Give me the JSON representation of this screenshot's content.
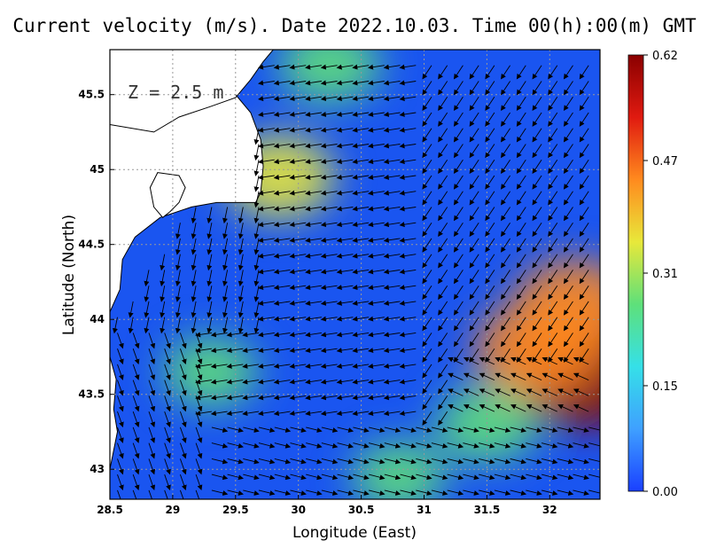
{
  "chart_data": {
    "type": "vector-field",
    "title": "Current velocity (m/s). Date 2022.10.03. Time 00(h):00(m) GMT",
    "xlabel": "Longitude (East)",
    "ylabel": "Latitude (North)",
    "xlim": [
      28.5,
      32.4
    ],
    "ylim": [
      42.8,
      45.8
    ],
    "xticks": [
      "28.5",
      "29",
      "29.5",
      "30",
      "30.5",
      "31",
      "31.5",
      "32"
    ],
    "xtick_values": [
      28.5,
      29,
      29.5,
      30,
      30.5,
      31,
      31.5,
      32
    ],
    "yticks": [
      "43",
      "43.5",
      "44",
      "44.5",
      "45",
      "45.5"
    ],
    "ytick_values": [
      43,
      43.5,
      44,
      44.5,
      45,
      45.5
    ],
    "grid": true,
    "depth_label": "Z = 2.5 m",
    "colorbar": {
      "min": 0.0,
      "max": 0.62,
      "ticks": [
        "0.62",
        "0.47",
        "0.31",
        "0.15",
        "0.00"
      ],
      "tick_values": [
        0.62,
        0.47,
        0.31,
        0.15,
        0.0
      ],
      "colors": [
        "#1a40ff",
        "#3fa0ff",
        "#35e0e8",
        "#5ee07a",
        "#e8e83a",
        "#ff8a1e",
        "#e01a10",
        "#8a0000"
      ]
    },
    "high_speed_regions": [
      {
        "lon": 32.3,
        "lat": 43.65,
        "speed": 0.6
      },
      {
        "lon": 31.9,
        "lat": 43.8,
        "speed": 0.45
      },
      {
        "lon": 32.2,
        "lat": 44.1,
        "speed": 0.42
      },
      {
        "lon": 29.85,
        "lat": 44.95,
        "speed": 0.35
      },
      {
        "lon": 30.25,
        "lat": 45.7,
        "speed": 0.3
      },
      {
        "lon": 31.5,
        "lat": 43.3,
        "speed": 0.3
      },
      {
        "lon": 30.8,
        "lat": 42.95,
        "speed": 0.25
      },
      {
        "lon": 29.3,
        "lat": 43.65,
        "speed": 0.25
      }
    ],
    "coastline": {
      "mainland": [
        [
          28.5,
          45.3
        ],
        [
          28.85,
          45.25
        ],
        [
          29.05,
          45.35
        ],
        [
          29.3,
          45.42
        ],
        [
          29.5,
          45.48
        ],
        [
          29.62,
          45.6
        ],
        [
          29.72,
          45.72
        ],
        [
          29.8,
          45.8
        ]
      ],
      "delta": [
        [
          29.5,
          45.5
        ],
        [
          29.62,
          45.38
        ],
        [
          29.7,
          45.2
        ],
        [
          29.72,
          45.02
        ],
        [
          29.7,
          44.85
        ],
        [
          29.66,
          44.78
        ]
      ],
      "lake": [
        [
          28.88,
          44.98
        ],
        [
          29.05,
          44.96
        ],
        [
          29.1,
          44.88
        ],
        [
          29.05,
          44.78
        ],
        [
          28.98,
          44.72
        ],
        [
          28.92,
          44.68
        ],
        [
          28.85,
          44.75
        ],
        [
          28.82,
          44.88
        ]
      ],
      "coast": [
        [
          28.5,
          44.05
        ],
        [
          28.58,
          44.2
        ],
        [
          28.6,
          44.4
        ],
        [
          28.7,
          44.55
        ],
        [
          28.9,
          44.68
        ],
        [
          29.15,
          44.75
        ],
        [
          29.35,
          44.78
        ],
        [
          29.55,
          44.78
        ],
        [
          29.66,
          44.78
        ]
      ],
      "south": [
        [
          28.5,
          43.75
        ],
        [
          28.55,
          43.6
        ],
        [
          28.53,
          43.4
        ],
        [
          28.56,
          43.25
        ],
        [
          28.5,
          43.0
        ]
      ]
    }
  }
}
